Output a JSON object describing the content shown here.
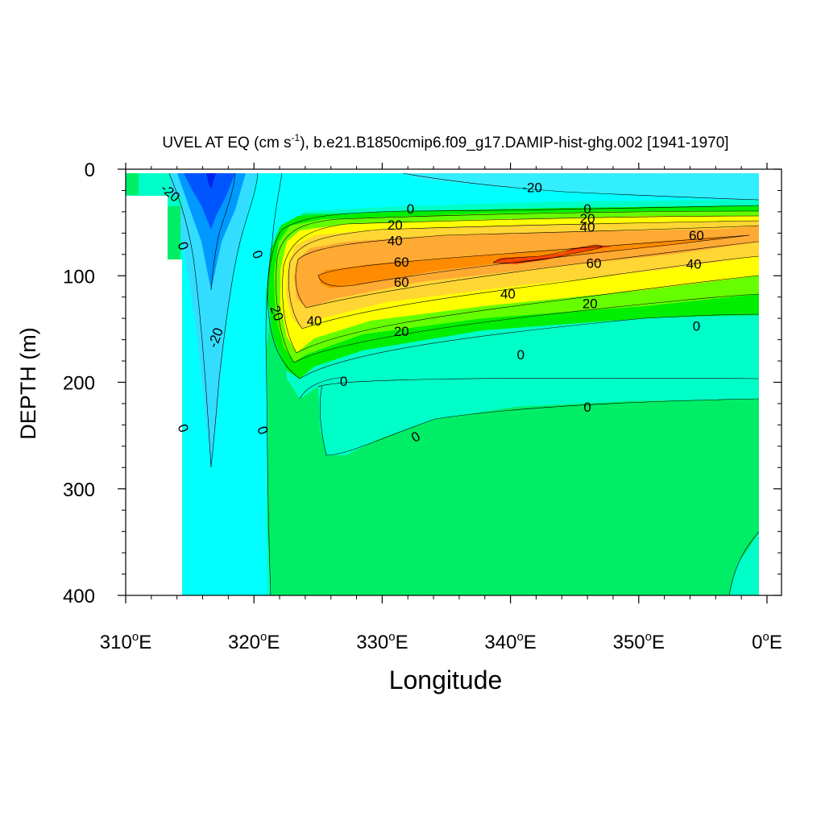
{
  "chart_data": {
    "type": "contour",
    "title_main": "UVEL AT EQ (cm s",
    "title_sup": "-1",
    "title_rest": "), b.e21.B1850cmip6.f09_g17.DAMIP-hist-ghg.002 [1941-1970]",
    "xlabel": "Longitude",
    "ylabel": "DEPTH (m)",
    "xlim": [
      310,
      360
    ],
    "ylim": [
      0,
      400
    ],
    "y_inverted": true,
    "x_ticks": [
      {
        "value": 310,
        "num": "310",
        "deg": "o",
        "suffix": "E"
      },
      {
        "value": 320,
        "num": "320",
        "deg": "o",
        "suffix": "E"
      },
      {
        "value": 330,
        "num": "330",
        "deg": "o",
        "suffix": "E"
      },
      {
        "value": 340,
        "num": "340",
        "deg": "o",
        "suffix": "E"
      },
      {
        "value": 350,
        "num": "350",
        "deg": "o",
        "suffix": "E"
      },
      {
        "value": 360,
        "num": "0",
        "deg": "o",
        "suffix": "E"
      }
    ],
    "y_ticks": [
      {
        "value": 0,
        "label": "0"
      },
      {
        "value": 100,
        "label": "100"
      },
      {
        "value": 200,
        "label": "200"
      },
      {
        "value": 300,
        "label": "300"
      },
      {
        "value": 400,
        "label": "400"
      }
    ],
    "contour_labels": [
      {
        "text": "-20",
        "lon": 313.5,
        "depth": 22,
        "rotate": 40
      },
      {
        "text": "-20",
        "lon": 341.7,
        "depth": 17,
        "rotate": 0
      },
      {
        "text": "0",
        "lon": 332.2,
        "depth": 37,
        "rotate": 0
      },
      {
        "text": "0",
        "lon": 346.0,
        "depth": 37,
        "rotate": 0
      },
      {
        "text": "20",
        "lon": 346.0,
        "depth": 46,
        "rotate": 0
      },
      {
        "text": "40",
        "lon": 346.0,
        "depth": 54,
        "rotate": 0
      },
      {
        "text": "20",
        "lon": 331.0,
        "depth": 52,
        "rotate": 0
      },
      {
        "text": "40",
        "lon": 331.0,
        "depth": 67,
        "rotate": 0
      },
      {
        "text": "60",
        "lon": 354.5,
        "depth": 62,
        "rotate": 0
      },
      {
        "text": "60",
        "lon": 331.5,
        "depth": 87,
        "rotate": 0
      },
      {
        "text": "60",
        "lon": 346.5,
        "depth": 88,
        "rotate": 0
      },
      {
        "text": "40",
        "lon": 354.3,
        "depth": 89,
        "rotate": 0
      },
      {
        "text": "60",
        "lon": 331.5,
        "depth": 106,
        "rotate": 0
      },
      {
        "text": "40",
        "lon": 339.8,
        "depth": 117,
        "rotate": 0
      },
      {
        "text": "20",
        "lon": 346.2,
        "depth": 126,
        "rotate": 0
      },
      {
        "text": "40",
        "lon": 324.7,
        "depth": 142,
        "rotate": 0
      },
      {
        "text": "20",
        "lon": 331.5,
        "depth": 152,
        "rotate": 0
      },
      {
        "text": "20",
        "lon": 321.8,
        "depth": 135,
        "rotate": 70
      },
      {
        "text": "0",
        "lon": 354.5,
        "depth": 147,
        "rotate": 0
      },
      {
        "text": "-20",
        "lon": 317.0,
        "depth": 158,
        "rotate": -70
      },
      {
        "text": "0",
        "lon": 340.8,
        "depth": 174,
        "rotate": 0
      },
      {
        "text": "0",
        "lon": 327.0,
        "depth": 199,
        "rotate": 0
      },
      {
        "text": "0",
        "lon": 346.0,
        "depth": 223,
        "rotate": 0
      },
      {
        "text": "0",
        "lon": 332.6,
        "depth": 251,
        "rotate": -30
      },
      {
        "text": "0",
        "lon": 314.5,
        "depth": 72,
        "rotate": 70
      },
      {
        "text": "0",
        "lon": 320.3,
        "depth": 80,
        "rotate": 70
      },
      {
        "text": "0",
        "lon": 314.5,
        "depth": 243,
        "rotate": 70
      },
      {
        "text": "0",
        "lon": 320.7,
        "depth": 245,
        "rotate": 70
      }
    ]
  }
}
